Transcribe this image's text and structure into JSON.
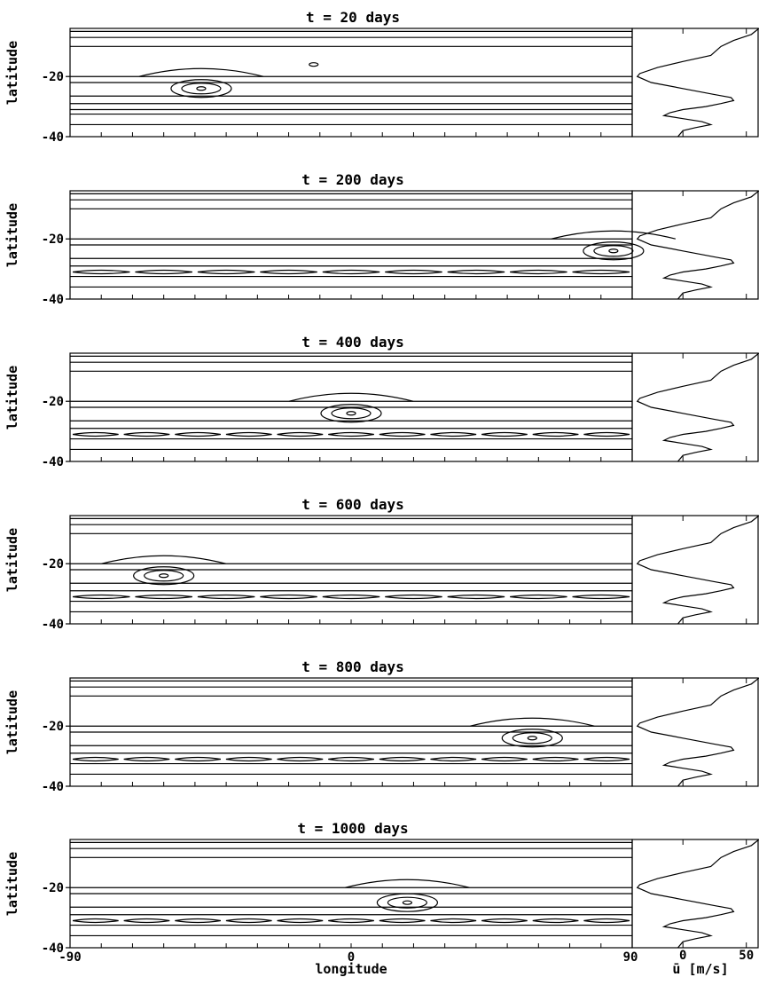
{
  "chart_data": {
    "type": "contour",
    "xlabel": "longitude",
    "ylabel": "latitude",
    "x_ticks": [
      "-90",
      "0",
      "90"
    ],
    "y_ticks": [
      "-20",
      "-40"
    ],
    "xlim": [
      -90,
      90
    ],
    "ylim": [
      -40,
      -4
    ],
    "side_panel": {
      "xlabel": "ū [m/s]",
      "x_ticks": [
        "0",
        "50"
      ],
      "xlim": [
        -40,
        60
      ],
      "profile": [
        [
          -4,
          60
        ],
        [
          -6,
          54
        ],
        [
          -8,
          40
        ],
        [
          -10,
          30
        ],
        [
          -13,
          22
        ],
        [
          -15,
          0
        ],
        [
          -17,
          -20
        ],
        [
          -19,
          -34
        ],
        [
          -20,
          -36
        ],
        [
          -22,
          -25
        ],
        [
          -24,
          0
        ],
        [
          -26,
          25
        ],
        [
          -27,
          38
        ],
        [
          -28,
          40
        ],
        [
          -29,
          30
        ],
        [
          -30,
          18
        ],
        [
          -31,
          0
        ],
        [
          -32,
          -10
        ],
        [
          -33,
          -15
        ],
        [
          -34,
          0
        ],
        [
          -35,
          15
        ],
        [
          -36,
          22
        ],
        [
          -37,
          10
        ],
        [
          -38,
          0
        ],
        [
          -40,
          -4
        ]
      ]
    },
    "contour_latitudes": [
      -5,
      -7,
      -10,
      -20,
      -22,
      -26.5,
      -29,
      -31,
      -32.5,
      -36
    ],
    "panels": [
      {
        "title": "t =   20 days",
        "vortex": {
          "lon": -48,
          "lat": -24
        },
        "extra_vortex": {
          "lon": -12,
          "lat": -16
        },
        "band": "solid"
      },
      {
        "title": "t =  200 days",
        "vortex": {
          "lon": 84,
          "lat": -24
        },
        "band": "wavy"
      },
      {
        "title": "t =  400 days",
        "vortex": {
          "lon": 0,
          "lat": -24
        },
        "band": "cells"
      },
      {
        "title": "t =  600 days",
        "vortex": {
          "lon": -60,
          "lat": -24
        },
        "band": "wavy"
      },
      {
        "title": "t =  800 days",
        "vortex": {
          "lon": 58,
          "lat": -24
        },
        "band": "cells"
      },
      {
        "title": "t = 1000 days",
        "vortex": {
          "lon": 18,
          "lat": -25
        },
        "band": "cells"
      }
    ]
  }
}
